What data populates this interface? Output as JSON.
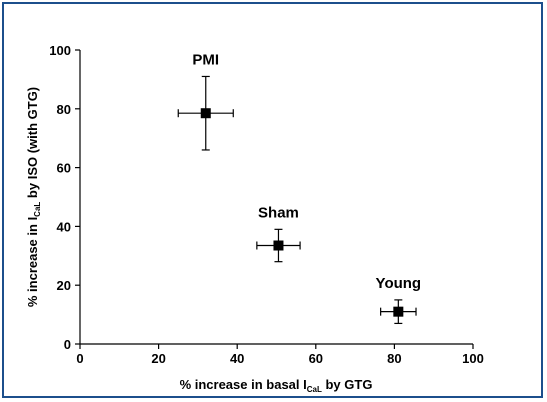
{
  "chart_data": {
    "type": "scatter",
    "xlabel": {
      "pre": "% increase in basal I",
      "sub": "CaL",
      "post": " by GTG"
    },
    "ylabel": {
      "pre": "% increase in I",
      "sub": "CaL",
      "post": " by ISO (with GTG)"
    },
    "xlim": [
      0,
      100
    ],
    "ylim": [
      0,
      100
    ],
    "xticks": [
      0,
      20,
      40,
      60,
      80,
      100
    ],
    "yticks": [
      0,
      20,
      40,
      60,
      80,
      100
    ],
    "grid": false,
    "colors": {
      "frame": "#1c4f8c",
      "marker": "#000000"
    },
    "points": [
      {
        "label": "PMI",
        "x": 32,
        "y": 78.5,
        "xerr": 7,
        "yerr": 12.5
      },
      {
        "label": "Sham",
        "x": 50.5,
        "y": 33.5,
        "xerr": 5.5,
        "yerr": 5.5
      },
      {
        "label": "Young",
        "x": 81,
        "y": 11,
        "xerr": 4.5,
        "yerr": 4
      }
    ]
  }
}
